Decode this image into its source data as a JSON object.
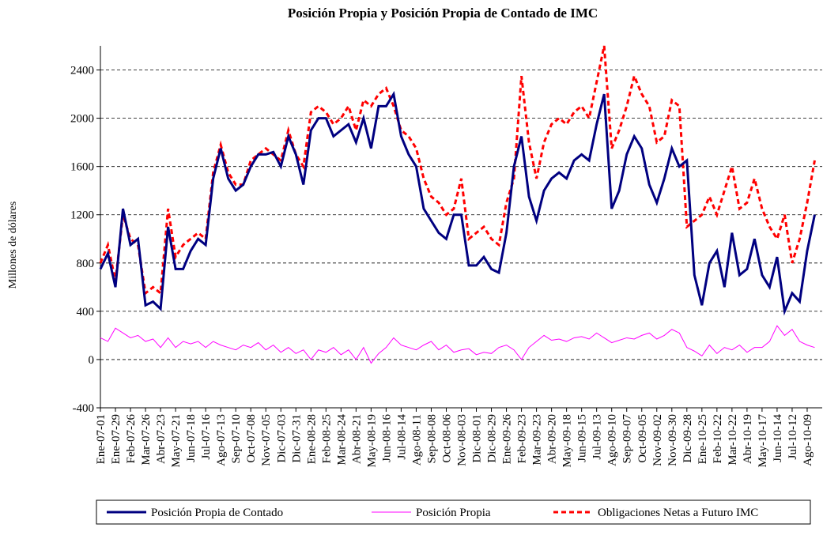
{
  "chart_data": {
    "type": "line",
    "title": "Posición Propia y Posición Propia de Contado de IMC",
    "y_label": "Millones de dólares",
    "categories": [
      "Ene-07-01",
      null,
      "Ene-07-29",
      null,
      "Feb-07-26",
      null,
      "Mar-07-26",
      null,
      "Abr-07-23",
      null,
      "May-07-21",
      null,
      "Jun-07-18",
      null,
      "Jul-07-16",
      null,
      "Ago-07-13",
      null,
      "Sep-07-10",
      null,
      "Oct-07-08",
      null,
      "Nov-07-05",
      null,
      "Dic-07-03",
      null,
      "Dic-07-31",
      null,
      "Ene-08-28",
      null,
      "Feb-08-25",
      null,
      "Mar-08-24",
      null,
      "Abr-08-21",
      null,
      "May-08-19",
      null,
      "Jun-08-16",
      null,
      "Jul-08-14",
      null,
      "Ago-08-11",
      null,
      "Sep-08-08",
      null,
      "Oct-08-06",
      null,
      "Nov-08-03",
      null,
      "Dic-08-01",
      null,
      "Dic-08-29",
      null,
      "Ene-09-26",
      null,
      "Feb-09-23",
      null,
      "Mar-09-23",
      null,
      "Abr-09-20",
      null,
      "May-09-18",
      null,
      "Jun-09-15",
      null,
      "Jul-09-13",
      null,
      "Ago-09-10",
      null,
      "Sep-09-07",
      null,
      "Oct-09-05",
      null,
      "Nov-09-02",
      null,
      "Nov-09-30",
      null,
      "Dic-09-28",
      null,
      "Ene-10-25",
      null,
      "Feb-10-22",
      null,
      "Mar-10-22",
      null,
      "Abr-10-19",
      null,
      "May-10-17",
      null,
      "Jun-10-14",
      null,
      "Jul-10-12",
      null,
      "Ago-10-09",
      null
    ],
    "series": [
      {
        "name": "Posición Propia de Contado",
        "color": "#000080",
        "style": "solid",
        "width": 3,
        "values": [
          750,
          880,
          600,
          1250,
          950,
          1000,
          450,
          480,
          420,
          1100,
          750,
          750,
          900,
          1000,
          950,
          1500,
          1750,
          1500,
          1400,
          1450,
          1600,
          1700,
          1700,
          1720,
          1600,
          1850,
          1700,
          1450,
          1900,
          2000,
          2000,
          1850,
          1900,
          1950,
          1800,
          2000,
          1750,
          2100,
          2100,
          2200,
          1850,
          1700,
          1600,
          1250,
          1150,
          1050,
          1000,
          1200,
          1200,
          780,
          780,
          850,
          750,
          720,
          1050,
          1600,
          1850,
          1350,
          1150,
          1400,
          1500,
          1550,
          1500,
          1650,
          1700,
          1650,
          1950,
          2200,
          1250,
          1400,
          1700,
          1850,
          1750,
          1450,
          1300,
          1500,
          1750,
          1600,
          1650,
          700,
          450,
          800,
          900,
          600,
          1050,
          700,
          750,
          1000,
          700,
          600,
          850,
          400,
          550,
          480,
          900,
          1200
        ]
      },
      {
        "name": "Posición Propia",
        "color": "#ff00ff",
        "style": "solid",
        "width": 1,
        "values": [
          180,
          150,
          260,
          220,
          180,
          200,
          150,
          170,
          100,
          180,
          100,
          150,
          130,
          150,
          100,
          150,
          120,
          100,
          80,
          120,
          100,
          140,
          80,
          120,
          60,
          100,
          50,
          80,
          0,
          80,
          60,
          100,
          40,
          80,
          0,
          100,
          -30,
          50,
          100,
          180,
          120,
          100,
          80,
          120,
          150,
          80,
          120,
          60,
          80,
          90,
          40,
          60,
          50,
          100,
          120,
          80,
          0,
          100,
          150,
          200,
          160,
          170,
          150,
          180,
          190,
          170,
          220,
          180,
          140,
          160,
          180,
          170,
          200,
          220,
          170,
          200,
          250,
          220,
          100,
          70,
          30,
          120,
          50,
          100,
          80,
          120,
          60,
          100,
          100,
          150,
          280,
          200,
          250,
          150,
          120,
          100
        ]
      },
      {
        "name": "Obligaciones Netas a Futuro IMC",
        "color": "#ff0000",
        "style": "dashed",
        "width": 3,
        "values": [
          800,
          950,
          650,
          1200,
          1000,
          950,
          550,
          600,
          550,
          1250,
          850,
          950,
          1000,
          1050,
          1000,
          1550,
          1780,
          1550,
          1450,
          1450,
          1650,
          1700,
          1750,
          1700,
          1650,
          1900,
          1700,
          1600,
          2050,
          2100,
          2050,
          1950,
          2000,
          2100,
          1900,
          2150,
          2100,
          2200,
          2250,
          2100,
          1900,
          1850,
          1750,
          1500,
          1350,
          1300,
          1200,
          1250,
          1500,
          1000,
          1050,
          1100,
          1000,
          950,
          1300,
          1500,
          2350,
          1800,
          1500,
          1800,
          1950,
          2000,
          1950,
          2050,
          2100,
          2000,
          2300,
          2600,
          1750,
          1900,
          2100,
          2350,
          2200,
          2100,
          1800,
          1850,
          2150,
          2100,
          1100,
          1150,
          1200,
          1350,
          1200,
          1400,
          1600,
          1250,
          1300,
          1500,
          1250,
          1100,
          1000,
          1200,
          800,
          1000,
          1300,
          1650
        ]
      }
    ],
    "ylim": [
      -400,
      2600
    ],
    "yticks": [
      -400,
      0,
      400,
      800,
      1200,
      1600,
      2000,
      2400
    ],
    "grid": true
  }
}
